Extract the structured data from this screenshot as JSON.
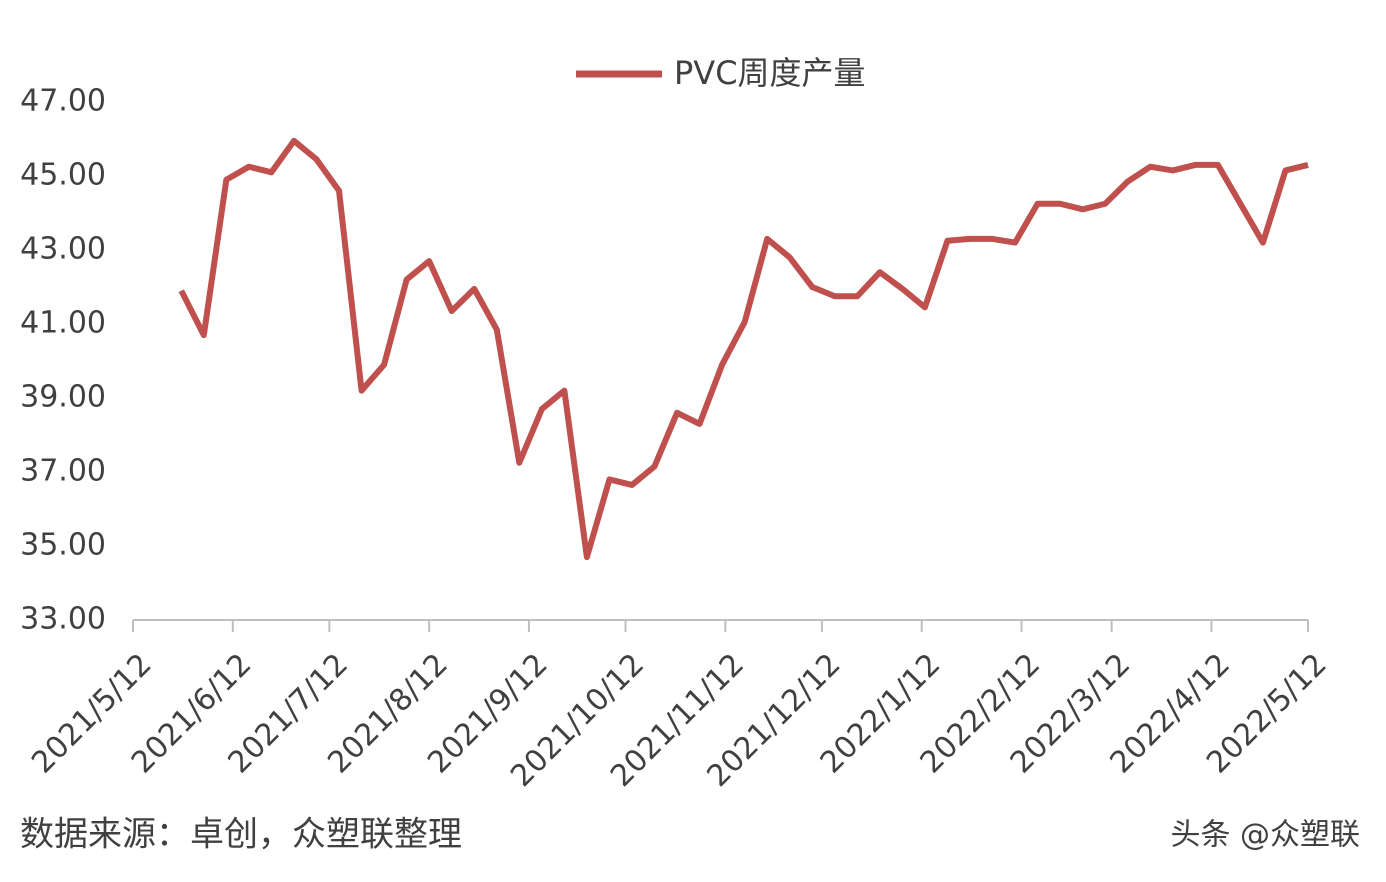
{
  "chart_data": {
    "type": "line",
    "x": [
      "2021/5/27",
      "2021/6/3",
      "2021/6/10",
      "2021/6/17",
      "2021/6/24",
      "2021/7/1",
      "2021/7/8",
      "2021/7/15",
      "2021/7/22",
      "2021/7/29",
      "2021/8/5",
      "2021/8/12",
      "2021/8/19",
      "2021/8/26",
      "2021/9/2",
      "2021/9/9",
      "2021/9/16",
      "2021/9/23",
      "2021/9/30",
      "2021/10/7",
      "2021/10/14",
      "2021/10/21",
      "2021/10/28",
      "2021/11/4",
      "2021/11/11",
      "2021/11/18",
      "2021/11/25",
      "2021/12/2",
      "2021/12/9",
      "2021/12/16",
      "2021/12/23",
      "2021/12/30",
      "2022/1/6",
      "2022/1/13",
      "2022/1/20",
      "2022/1/27",
      "2022/2/3",
      "2022/2/10",
      "2022/2/17",
      "2022/2/24",
      "2022/3/3",
      "2022/3/10",
      "2022/3/17",
      "2022/3/24",
      "2022/3/31",
      "2022/4/7",
      "2022/4/14",
      "2022/4/21",
      "2022/4/28",
      "2022/5/5",
      "2022/5/12"
    ],
    "series": [
      {
        "name": "PVC周度产量",
        "color": "#c0504d",
        "values": [
          41.9,
          40.7,
          44.9,
          45.25,
          45.1,
          45.95,
          45.45,
          44.6,
          39.2,
          39.9,
          42.2,
          42.7,
          41.35,
          41.95,
          40.85,
          37.25,
          38.7,
          39.2,
          34.7,
          36.8,
          36.65,
          37.15,
          38.6,
          38.3,
          39.9,
          41.05,
          43.3,
          42.8,
          42.0,
          41.75,
          41.75,
          42.4,
          41.95,
          41.45,
          43.25,
          43.3,
          43.3,
          43.2,
          44.25,
          44.25,
          44.1,
          44.25,
          44.85,
          45.25,
          45.15,
          45.3,
          45.3,
          44.25,
          43.2,
          45.15,
          45.3
        ]
      }
    ],
    "xlim": [
      "2021/5/12",
      "2022/5/12"
    ],
    "xticks": [
      "2021/5/12",
      "2021/6/12",
      "2021/7/12",
      "2021/8/12",
      "2021/9/12",
      "2021/10/12",
      "2021/11/12",
      "2021/12/12",
      "2022/1/12",
      "2022/2/12",
      "2022/3/12",
      "2022/4/12",
      "2022/5/12"
    ],
    "ylim": [
      33,
      47
    ],
    "yticks": [
      {
        "value": 33,
        "label": "33.00"
      },
      {
        "value": 35,
        "label": "35.00"
      },
      {
        "value": 37,
        "label": "37.00"
      },
      {
        "value": 39,
        "label": "39.00"
      },
      {
        "value": 41,
        "label": "41.00"
      },
      {
        "value": 43,
        "label": "43.00"
      },
      {
        "value": 45,
        "label": "45.00"
      },
      {
        "value": 47,
        "label": "47.00"
      }
    ],
    "grid": false,
    "legend": "top"
  },
  "footer": {
    "source": "数据来源：卓创，众塑联整理",
    "watermark": "头条 @众塑联"
  }
}
